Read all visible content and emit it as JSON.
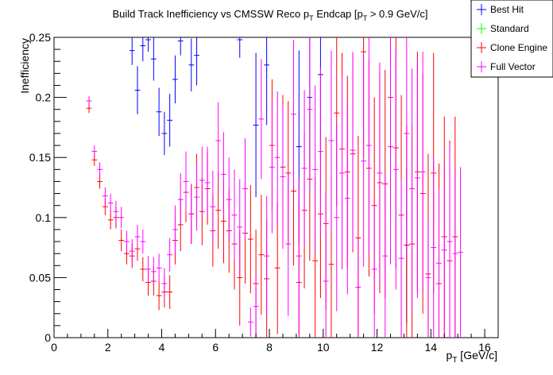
{
  "chart_data": {
    "type": "errorbar",
    "title": {
      "main": "Build Track Inefficiency vs CMSSW Reco p",
      "sub1": "T",
      "mid": " Endcap [p",
      "sub2": "T",
      "tail": " > 0.9 GeV/c]"
    },
    "xlabel": {
      "base": "p",
      "sub": "T",
      "unit": " [GeV/c]"
    },
    "ylabel": "Inefficiency",
    "xlim": [
      0,
      16.5
    ],
    "ylim": [
      0,
      0.25
    ],
    "xticks": [
      0,
      2,
      4,
      6,
      8,
      10,
      12,
      14,
      16
    ],
    "xtick_labels": [
      "0",
      "2",
      "4",
      "6",
      "8",
      "10",
      "12",
      "14",
      "16"
    ],
    "yticks": [
      0,
      0.05,
      0.1,
      0.15,
      0.2,
      0.25
    ],
    "ytick_labels": [
      "0",
      "0.05",
      "0.1",
      "0.15",
      "0.2",
      "0.25"
    ],
    "grid": false,
    "legend_position": "top-right",
    "series": [
      {
        "name": "Best Hit",
        "color": "#0000ff",
        "x": [
          2.9,
          3.1,
          3.3,
          3.5,
          3.7,
          3.9,
          4.1,
          4.3,
          4.5,
          4.7,
          5.1,
          5.3,
          6.9,
          7.5,
          7.9,
          9.1,
          9.5,
          9.9,
          13.1
        ],
        "y": [
          0.239,
          0.206,
          0.243,
          0.248,
          0.232,
          0.188,
          0.17,
          0.181,
          0.215,
          0.247,
          0.227,
          0.235,
          0.248,
          0.177,
          0.227,
          0.159,
          0.2,
          0.219,
          0.077
        ],
        "err": [
          0.012,
          0.02,
          0.013,
          0.01,
          0.018,
          0.02,
          0.018,
          0.022,
          0.02,
          0.012,
          0.022,
          0.025,
          0.015,
          0.06,
          0.05,
          0.08,
          0.06,
          0.06,
          0.065
        ]
      },
      {
        "name": "Standard",
        "color": "#00ff00",
        "x": [],
        "y": [],
        "err": []
      },
      {
        "name": "Clone Engine",
        "color": "#ff0000",
        "x": [
          1.3,
          1.5,
          1.7,
          1.9,
          2.1,
          2.3,
          2.5,
          2.7,
          2.9,
          3.1,
          3.3,
          3.5,
          3.7,
          3.9,
          4.1,
          4.3,
          4.5,
          4.7,
          4.9,
          5.1,
          5.3,
          5.5,
          5.7,
          5.9,
          6.1,
          6.3,
          6.5,
          6.7,
          6.9,
          7.1,
          7.3,
          7.5,
          7.7,
          7.9,
          8.1,
          8.3,
          8.5,
          8.7,
          8.9,
          9.1,
          9.3,
          9.5,
          9.7,
          9.9,
          10.1,
          10.3,
          10.5,
          10.7,
          10.9,
          11.1,
          11.3,
          11.5,
          11.7,
          11.9,
          12.1,
          12.3,
          12.5,
          12.7,
          12.9,
          13.1,
          13.3,
          13.5,
          13.7,
          13.9,
          14.1,
          14.3,
          14.5,
          14.7,
          14.9
        ],
        "y": [
          0.191,
          0.148,
          0.13,
          0.109,
          0.098,
          0.1,
          0.081,
          0.07,
          0.068,
          0.074,
          0.057,
          0.046,
          0.047,
          0.035,
          0.038,
          0.038,
          0.081,
          0.094,
          0.121,
          0.103,
          0.125,
          0.105,
          0.124,
          0.089,
          0.106,
          0.097,
          0.089,
          0.078,
          0.05,
          0.087,
          0.082,
          0.045,
          0.069,
          0.049,
          0.16,
          0.058,
          0.142,
          0.137,
          0.122,
          0.046,
          0.106,
          0.132,
          0.064,
          0.103,
          0.095,
          0.061,
          0.187,
          0.157,
          0.138,
          0.153,
          0.083,
          0.238,
          0.141,
          0.11,
          0.129,
          0.128,
          0.2,
          0.158,
          0.102,
          0.077,
          0.078,
          0.138,
          0.12,
          0.053,
          0.137,
          0.045,
          0.084,
          0.064,
          0.084
        ],
        "err": [
          0.004,
          0.005,
          0.006,
          0.007,
          0.008,
          0.009,
          0.009,
          0.009,
          0.01,
          0.01,
          0.01,
          0.011,
          0.012,
          0.012,
          0.013,
          0.014,
          0.02,
          0.022,
          0.025,
          0.025,
          0.028,
          0.028,
          0.03,
          0.03,
          0.032,
          0.035,
          0.035,
          0.038,
          0.04,
          0.042,
          0.045,
          0.045,
          0.05,
          0.05,
          0.055,
          0.055,
          0.06,
          0.06,
          0.062,
          0.065,
          0.065,
          0.068,
          0.07,
          0.07,
          0.072,
          0.075,
          0.078,
          0.08,
          0.08,
          0.082,
          0.085,
          0.088,
          0.09,
          0.09,
          0.092,
          0.095,
          0.098,
          0.1,
          0.1,
          0.1,
          0.1,
          0.1,
          0.1,
          0.1,
          0.1,
          0.1,
          0.1,
          0.1,
          0.1
        ]
      },
      {
        "name": "Full Vector",
        "color": "#ff00ff",
        "x": [
          1.3,
          1.5,
          1.7,
          1.9,
          2.1,
          2.3,
          2.5,
          2.7,
          2.9,
          3.1,
          3.3,
          3.5,
          3.7,
          3.9,
          4.1,
          4.3,
          4.5,
          4.7,
          4.9,
          5.1,
          5.3,
          5.5,
          5.7,
          5.9,
          6.1,
          6.3,
          6.5,
          6.7,
          6.9,
          7.1,
          7.3,
          7.5,
          7.7,
          7.9,
          8.1,
          8.3,
          8.5,
          8.7,
          8.9,
          9.1,
          9.3,
          9.5,
          9.7,
          9.9,
          10.1,
          10.3,
          10.5,
          10.7,
          10.9,
          11.1,
          11.3,
          11.5,
          11.7,
          11.9,
          12.1,
          12.3,
          12.5,
          12.7,
          12.9,
          13.1,
          13.3,
          13.5,
          13.7,
          13.9,
          14.1,
          14.3,
          14.5,
          14.7,
          14.9,
          15.1
        ],
        "y": [
          0.197,
          0.155,
          0.14,
          0.118,
          0.112,
          0.105,
          0.1,
          0.08,
          0.072,
          0.084,
          0.08,
          0.057,
          0.055,
          0.058,
          0.045,
          0.069,
          0.09,
          0.115,
          0.13,
          0.103,
          0.117,
          0.131,
          0.129,
          0.109,
          0.164,
          0.136,
          0.115,
          0.102,
          0.092,
          0.124,
          0.013,
          0.026,
          0.182,
          0.068,
          0.142,
          0.15,
          0.134,
          0.078,
          0.186,
          0.068,
          0.141,
          0.19,
          0.14,
          0.155,
          0.047,
          0.164,
          0.1,
          0.137,
          0.116,
          0.156,
          0.042,
          0.147,
          0.16,
          0.057,
          0.137,
          0.068,
          0.159,
          0.14,
          0.066,
          0.17,
          0.124,
          0.133,
          0.138,
          0.05,
          0.075,
          0.062,
          0.073,
          0.08,
          0.07,
          0.071
        ],
        "err": [
          0.004,
          0.005,
          0.006,
          0.007,
          0.008,
          0.009,
          0.009,
          0.009,
          0.01,
          0.01,
          0.01,
          0.011,
          0.012,
          0.012,
          0.013,
          0.014,
          0.02,
          0.022,
          0.025,
          0.025,
          0.028,
          0.028,
          0.03,
          0.03,
          0.032,
          0.035,
          0.035,
          0.038,
          0.04,
          0.042,
          0.012,
          0.026,
          0.05,
          0.05,
          0.055,
          0.055,
          0.06,
          0.06,
          0.062,
          0.065,
          0.065,
          0.068,
          0.07,
          0.07,
          0.072,
          0.075,
          0.078,
          0.08,
          0.08,
          0.082,
          0.042,
          0.088,
          0.09,
          0.057,
          0.092,
          0.068,
          0.098,
          0.1,
          0.066,
          0.1,
          0.1,
          0.1,
          0.1,
          0.05,
          0.075,
          0.062,
          0.073,
          0.08,
          0.07,
          0.071
        ]
      }
    ]
  }
}
